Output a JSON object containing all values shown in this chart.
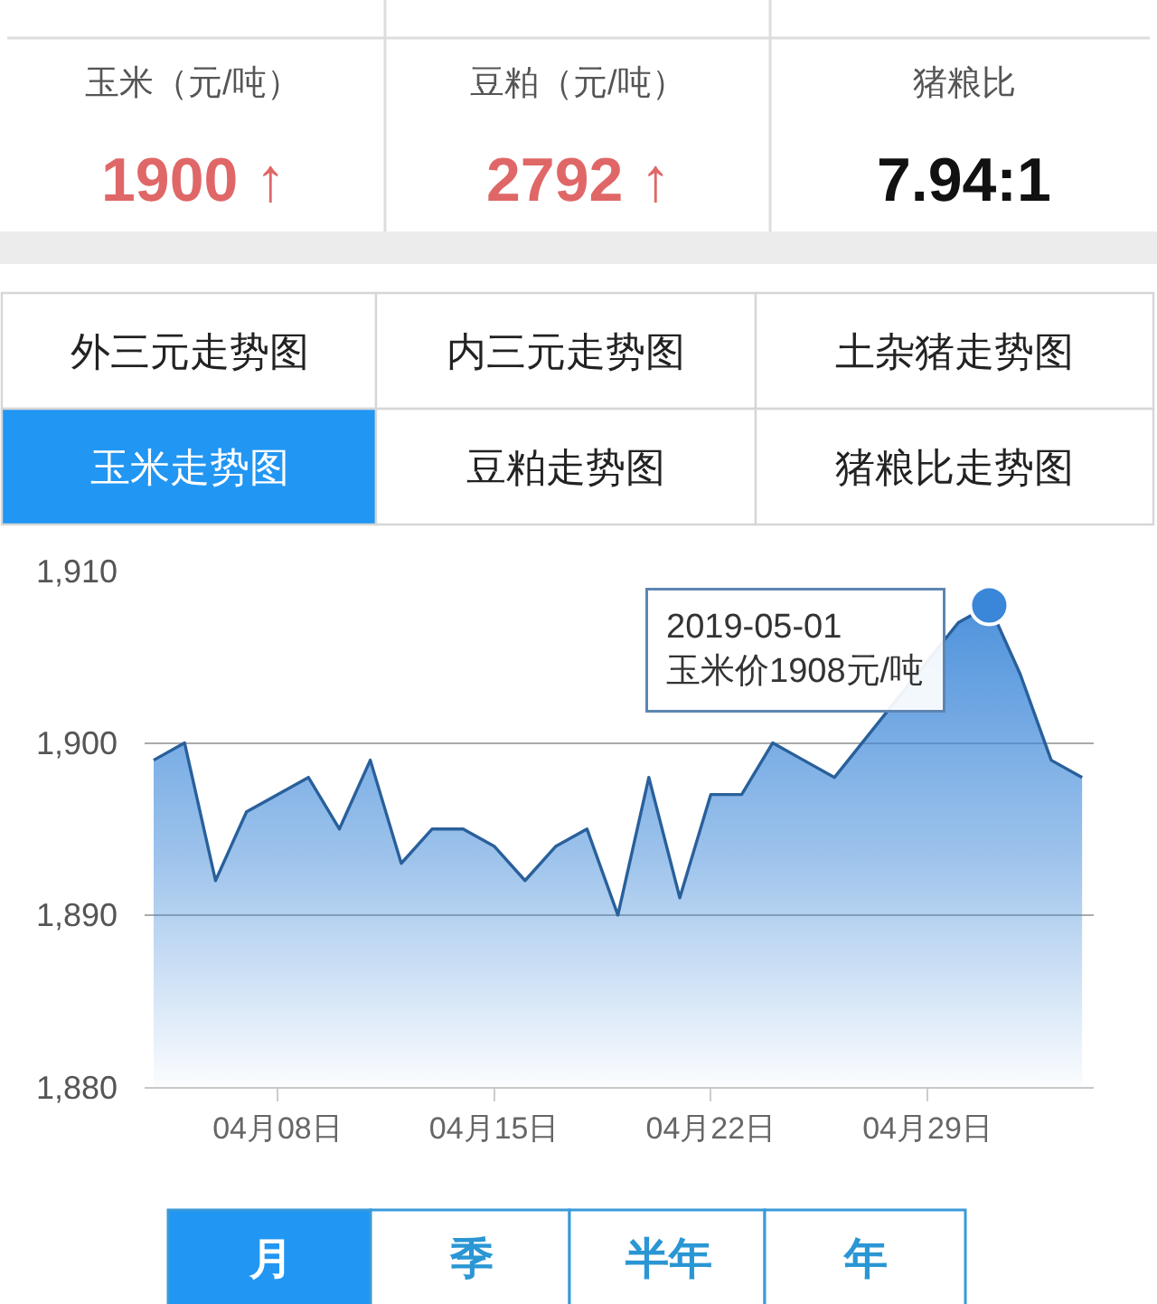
{
  "chart_data": [
    {
      "type": "other",
      "categories": [
        "玉米（元/吨）",
        "豆粕（元/吨）",
        "猪粮比"
      ],
      "value_labels": [
        "1900 ↑",
        "2792 ↑",
        "7.94:1"
      ],
      "colors": [
        "#e06767",
        "#e06767",
        "#111111"
      ]
    },
    {
      "type": "other",
      "categories": [
        "外三元走势图",
        "内三元走势图",
        "土杂猪走势图",
        "玉米走势图",
        "豆粕走势图",
        "猪粮比走势图"
      ],
      "colors": [
        "#ffffff",
        "#ffffff",
        "#ffffff",
        "#2196f3",
        "#ffffff",
        "#ffffff"
      ]
    },
    {
      "type": "area",
      "x": [
        "2019-04-04",
        "2019-04-05",
        "2019-04-06",
        "2019-04-07",
        "2019-04-08",
        "2019-04-09",
        "2019-04-10",
        "2019-04-11",
        "2019-04-12",
        "2019-04-13",
        "2019-04-14",
        "2019-04-15",
        "2019-04-16",
        "2019-04-17",
        "2019-04-18",
        "2019-04-19",
        "2019-04-20",
        "2019-04-21",
        "2019-04-22",
        "2019-04-23",
        "2019-04-24",
        "2019-04-25",
        "2019-04-26",
        "2019-04-27",
        "2019-04-28",
        "2019-04-29",
        "2019-04-30",
        "2019-05-01",
        "2019-05-02",
        "2019-05-03",
        "2019-05-04"
      ],
      "series": [
        {
          "color": "#3a86d8",
          "values": [
            1899,
            1900,
            1892,
            1896,
            1897,
            1898,
            1895,
            1899,
            1893,
            1895,
            1895,
            1894,
            1892,
            1894,
            1895,
            1890,
            1898,
            1891,
            1897,
            1897,
            1900,
            1899,
            1898,
            null,
            null,
            null,
            1907,
            1908,
            1904,
            1899,
            1898
          ]
        }
      ],
      "xlim": [
        "2019-04-03T17:00",
        "2019-05-04T09:00"
      ],
      "xticks": [
        {
          "value": "2019-04-08",
          "label": "04月08日"
        },
        {
          "value": "2019-04-15",
          "label": "04月15日"
        },
        {
          "value": "2019-04-22",
          "label": "04月22日"
        },
        {
          "value": "2019-04-29",
          "label": "04月29日"
        }
      ],
      "ylim": [
        1880,
        1910
      ],
      "yticks": [
        {
          "value": 1880,
          "label": "1,880"
        },
        {
          "value": 1890,
          "label": "1,890"
        },
        {
          "value": 1900,
          "label": "1,900"
        },
        {
          "value": 1910,
          "label": "1,910"
        }
      ],
      "grid": "y",
      "annotations": [
        {
          "text": "2019-05-01\n玉米价1908元/吨",
          "x": "2019-05-01",
          "y": 1908
        }
      ]
    },
    {
      "type": "other",
      "categories": [
        "月",
        "季",
        "半年",
        "年"
      ],
      "colors": [
        "#2196f3",
        "#ffffff",
        "#ffffff",
        "#ffffff"
      ]
    }
  ]
}
